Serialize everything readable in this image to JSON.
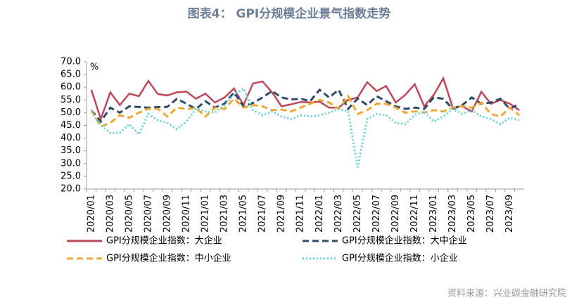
{
  "chart_data": {
    "type": "line",
    "title": "图表4： GPI分规模企业景气指数走势",
    "y_unit": "%",
    "source": "资料来源：兴业碳金融研究院",
    "categories": [
      "2020/01",
      null,
      "2020/03",
      null,
      "2020/05",
      null,
      "2020/07",
      null,
      "2020/09",
      null,
      "2020/11",
      null,
      "2021/01",
      null,
      "2021/03",
      null,
      "2021/05",
      null,
      "2021/07",
      null,
      "2021/09",
      null,
      "2021/11",
      null,
      "2022/01",
      null,
      "2022/03",
      null,
      "2022/05",
      null,
      "2022/07",
      null,
      "2022/09",
      null,
      "2022/11",
      null,
      "2023/01",
      null,
      "2023/03",
      null,
      "2023/05",
      null,
      "2023/07",
      null,
      "2023/09",
      null
    ],
    "ylim": [
      20,
      70
    ],
    "yticks": [
      {
        "value": 20,
        "label": "20.0"
      },
      {
        "value": 25,
        "label": "25.0"
      },
      {
        "value": 30,
        "label": "30.0"
      },
      {
        "value": 35,
        "label": "35.0"
      },
      {
        "value": 40,
        "label": "40.0"
      },
      {
        "value": 45,
        "label": "45.0"
      },
      {
        "value": 50,
        "label": "50.0"
      },
      {
        "value": 55,
        "label": "55.0"
      },
      {
        "value": 60,
        "label": "60.0"
      },
      {
        "value": 65,
        "label": "65.0"
      },
      {
        "value": 70,
        "label": "70.0"
      }
    ],
    "series": [
      {
        "name": "GPI分规模企业指数：大企业",
        "color": "#c0475a",
        "dash": "solid",
        "values": [
          59,
          47.5,
          58,
          53,
          57.5,
          56.5,
          62.5,
          57.3,
          56.8,
          58,
          58.3,
          55.5,
          57.5,
          54,
          56,
          59.5,
          53,
          61.5,
          62.3,
          58,
          52.5,
          53.3,
          54.2,
          54,
          54.3,
          52,
          52,
          55,
          56,
          62,
          58.5,
          60.5,
          54,
          57,
          61.2,
          52.5,
          57,
          63.5,
          52,
          52.5,
          50.5,
          58.2,
          53.5,
          55,
          53.5,
          51
        ]
      },
      {
        "name": "GPI分规模企业指数：大中企业",
        "color": "#2e4a6b",
        "dash": "dash",
        "values": [
          51,
          46.5,
          52,
          50,
          52.5,
          52.2,
          52,
          52.2,
          52.3,
          55.5,
          53.5,
          51.5,
          54.5,
          52,
          53.5,
          58,
          52.5,
          53.8,
          56,
          58.5,
          56,
          55.2,
          55.5,
          54.5,
          59,
          56,
          59,
          51.5,
          55.5,
          53,
          56.5,
          54.5,
          52.5,
          51.5,
          52,
          51.5,
          56,
          55.5,
          51.5,
          53,
          56,
          53.5,
          54,
          55.5,
          51.5,
          53.5
        ]
      },
      {
        "name": "GPI分规模企业指数：中小企业",
        "color": "#f0a830",
        "dash": "dash",
        "values": [
          51,
          44.5,
          46,
          49,
          48,
          50,
          51.5,
          51.5,
          48.5,
          52,
          51.5,
          51.8,
          48.5,
          52,
          51.5,
          55.5,
          52,
          53,
          52.5,
          51,
          51.2,
          50.5,
          52,
          53.5,
          55,
          54,
          51.5,
          56.5,
          49.5,
          51,
          53.5,
          53.5,
          52,
          50,
          50.5,
          50,
          51,
          50.5,
          52,
          52.5,
          52,
          54,
          49.5,
          48.5,
          52,
          49
        ]
      },
      {
        "name": "GPI分规模企业指数：小企业",
        "color": "#5fd3d3",
        "dash": "dot",
        "values": [
          50.5,
          45,
          42,
          42,
          45.5,
          41.5,
          49.5,
          47,
          46,
          43.5,
          46.5,
          51.5,
          50.5,
          50,
          53,
          57,
          59.5,
          51,
          49,
          50.5,
          48.5,
          47.5,
          49,
          48.5,
          49,
          50,
          51.5,
          50.5,
          28.5,
          47.5,
          49.5,
          49,
          46,
          45.5,
          49,
          50.5,
          46.5,
          48.5,
          51.5,
          49.5,
          51,
          48.5,
          47.5,
          45.5,
          48,
          47
        ]
      }
    ]
  }
}
